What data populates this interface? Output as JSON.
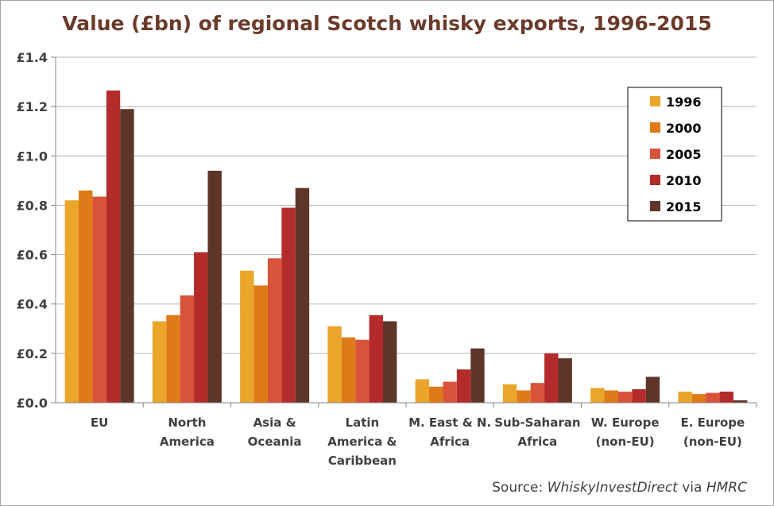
{
  "chart_data": {
    "type": "bar",
    "title": "Value (£bn) of regional Scotch whisky exports, 1996-2015",
    "categories": [
      [
        "EU"
      ],
      [
        "North",
        "America"
      ],
      [
        "Asia &",
        "Oceania"
      ],
      [
        "Latin",
        "America &",
        "Caribbean"
      ],
      [
        "M. East & N.",
        "Africa"
      ],
      [
        "Sub-Saharan",
        "Africa"
      ],
      [
        "W. Europe",
        "(non-EU)"
      ],
      [
        "E. Europe",
        "(non-EU)"
      ]
    ],
    "series": [
      {
        "name": "1996",
        "color": "#e9a62a",
        "values": [
          0.82,
          0.33,
          0.535,
          0.31,
          0.095,
          0.075,
          0.06,
          0.045
        ]
      },
      {
        "name": "2000",
        "color": "#de7a18",
        "values": [
          0.86,
          0.355,
          0.475,
          0.265,
          0.065,
          0.05,
          0.05,
          0.035
        ]
      },
      {
        "name": "2005",
        "color": "#d9533a",
        "values": [
          0.835,
          0.435,
          0.585,
          0.255,
          0.085,
          0.08,
          0.045,
          0.04
        ]
      },
      {
        "name": "2010",
        "color": "#b42b2b",
        "values": [
          1.265,
          0.61,
          0.79,
          0.355,
          0.135,
          0.2,
          0.055,
          0.045
        ]
      },
      {
        "name": "2015",
        "color": "#5e3528",
        "values": [
          1.19,
          0.94,
          0.87,
          0.33,
          0.22,
          0.18,
          0.105,
          0.01
        ]
      }
    ],
    "y_ticks": [
      "£0.0",
      "£0.2",
      "£0.4",
      "£0.6",
      "£0.8",
      "£1.0",
      "£1.2",
      "£1.4"
    ],
    "ylim": [
      0,
      1.4
    ],
    "ylabel": "",
    "xlabel": "",
    "grid": true,
    "legend_position": "top-right"
  },
  "source": {
    "prefix": "Source: ",
    "emphasis": "WhiskyInvestDirect",
    "mid": " via ",
    "suffix": "HMRC"
  }
}
